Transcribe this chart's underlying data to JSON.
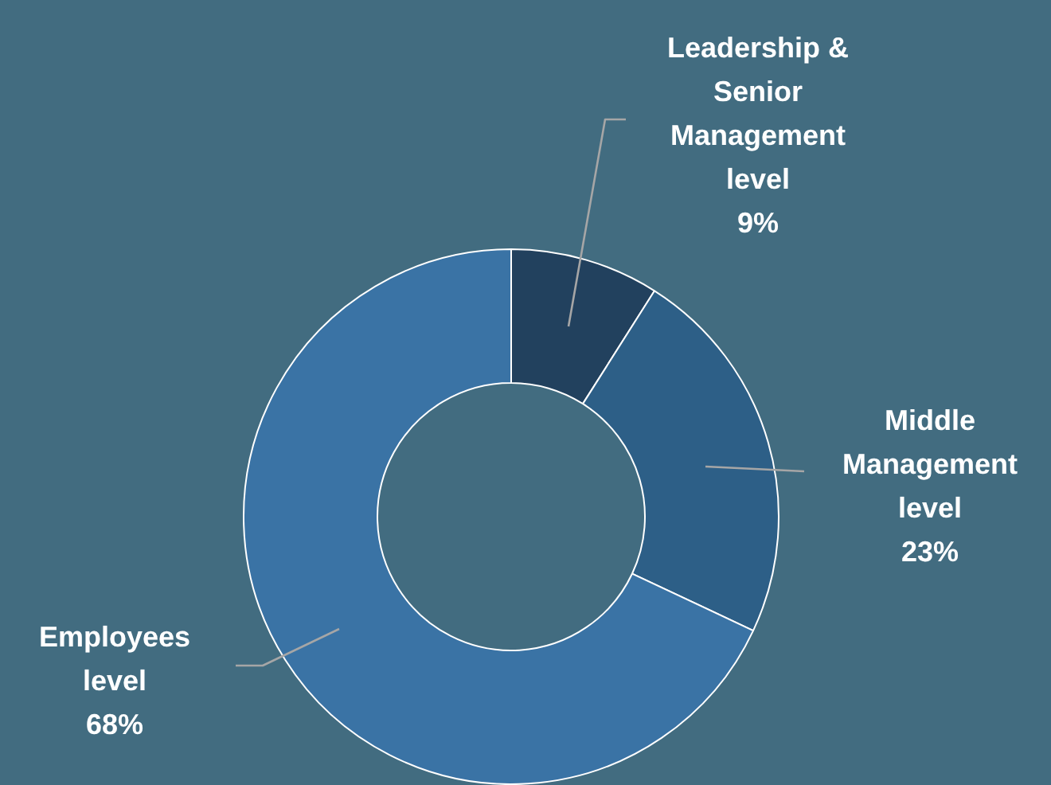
{
  "chart_data": {
    "type": "donut",
    "categories": [
      "Leadership & Senior Management level",
      "Middle Management level",
      "Employees level"
    ],
    "values": [
      9,
      23,
      68
    ],
    "value_labels": [
      "9%",
      "23%",
      "68%"
    ],
    "colors": [
      "#22415e",
      "#2d5f87",
      "#3a73a5"
    ],
    "legend": false
  }
}
